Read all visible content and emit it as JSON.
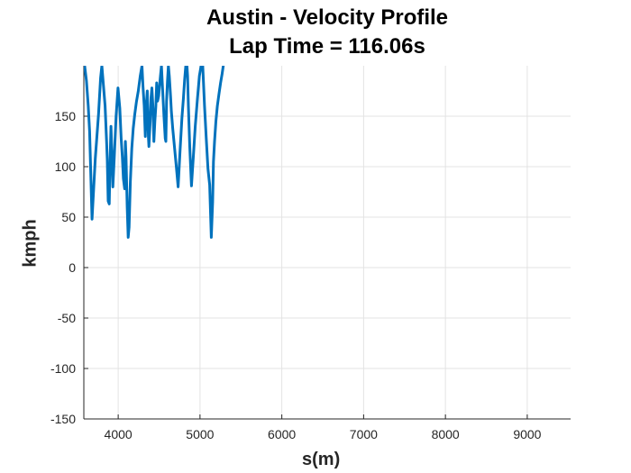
{
  "chart_data": {
    "type": "line",
    "title": [
      "Austin - Velocity Profile",
      "Lap Time = 116.06s"
    ],
    "xlabel": "s(m)",
    "ylabel": "kmph",
    "xlim": [
      3580,
      9530
    ],
    "ylim": [
      -150,
      200
    ],
    "xticks": [
      4000,
      5000,
      6000,
      7000,
      8000,
      9000
    ],
    "yticks": [
      -150,
      -100,
      -50,
      0,
      50,
      100,
      150
    ],
    "xtick_labels": [
      "4000",
      "5000",
      "6000",
      "7000",
      "8000",
      "9000"
    ],
    "ytick_labels": [
      "-150",
      "-100",
      "-50",
      "0",
      "50",
      "100",
      "150"
    ],
    "grid": true,
    "line_color": "#0072BD",
    "series": [
      {
        "x": [
          3590,
          3612,
          3634,
          3651,
          3680,
          3720,
          3760,
          3785,
          3800,
          3820,
          3840,
          3858,
          3866,
          3878,
          3891,
          3901,
          3912,
          3924,
          3935,
          3952,
          3975,
          3998,
          4020,
          4036,
          4050,
          4064,
          4079,
          4088,
          4096,
          4110,
          4122,
          4133,
          4149,
          4166,
          4184,
          4202,
          4222,
          4245,
          4270,
          4291,
          4303,
          4318,
          4331,
          4343,
          4356,
          4369,
          4376,
          4391,
          4401,
          4412,
          4424,
          4436,
          4448,
          4460,
          4470,
          4481,
          4494,
          4506,
          4517,
          4529,
          4542,
          4560,
          4575,
          4583,
          4592,
          4603,
          4613,
          4625,
          4640,
          4650,
          4666,
          4687,
          4710,
          4733,
          4756,
          4779,
          4797,
          4812,
          4826,
          4840,
          4848,
          4858,
          4875,
          4896,
          4919,
          4942,
          4969,
          4993,
          5013,
          5033,
          5055,
          5076,
          5097,
          5118,
          5138,
          5155,
          5165,
          5178,
          5194,
          5212,
          5232,
          5252,
          5270,
          5285
        ],
        "y": [
          200,
          185,
          160,
          135,
          48,
          108,
          152,
          188,
          200,
          180,
          160,
          126,
          107,
          66,
          63,
          105,
          140,
          112,
          80,
          110,
          150,
          178,
          158,
          128,
          110,
          88,
          78,
          125,
          110,
          60,
          30,
          40,
          85,
          118,
          138,
          152,
          164,
          175,
          190,
          200,
          180,
          160,
          130,
          160,
          175,
          130,
          120,
          145,
          168,
          178,
          160,
          125,
          145,
          160,
          183,
          165,
          170,
          180,
          190,
          200,
          178,
          150,
          128,
          125,
          165,
          185,
          200,
          190,
          170,
          155,
          138,
          120,
          100,
          80,
          115,
          148,
          168,
          186,
          200,
          200,
          190,
          160,
          120,
          81,
          110,
          140,
          168,
          190,
          200,
          200,
          160,
          128,
          98,
          82,
          30,
          65,
          105,
          125,
          145,
          160,
          172,
          183,
          192,
          200
        ]
      }
    ]
  }
}
